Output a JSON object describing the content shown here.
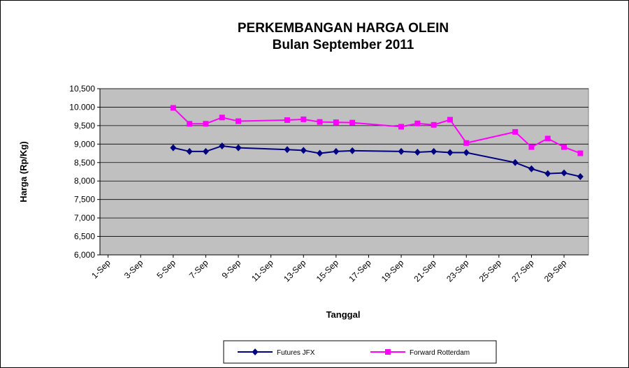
{
  "chart_data": {
    "type": "line",
    "title": "PERKEMBANGAN HARGA OLEIN",
    "subtitle": "Bulan September 2011",
    "x_label": "Tanggal",
    "y_label": "Harga (Rp/Kg)",
    "x": [
      5,
      6,
      7,
      8,
      9,
      12,
      13,
      14,
      15,
      16,
      19,
      20,
      21,
      22,
      23,
      26,
      27,
      28,
      29,
      30
    ],
    "xlim": [
      0.5,
      30.5
    ],
    "xticks": [
      {
        "value": 1,
        "label": "1-Sep"
      },
      {
        "value": 3,
        "label": "3-Sep"
      },
      {
        "value": 5,
        "label": "5-Sep"
      },
      {
        "value": 7,
        "label": "7-Sep"
      },
      {
        "value": 9,
        "label": "9-Sep"
      },
      {
        "value": 11,
        "label": "11-Sep"
      },
      {
        "value": 13,
        "label": "13-Sep"
      },
      {
        "value": 15,
        "label": "15-Sep"
      },
      {
        "value": 17,
        "label": "17-Sep"
      },
      {
        "value": 19,
        "label": "19-Sep"
      },
      {
        "value": 21,
        "label": "21-Sep"
      },
      {
        "value": 23,
        "label": "23-Sep"
      },
      {
        "value": 25,
        "label": "25-Sep"
      },
      {
        "value": 27,
        "label": "27-Sep"
      },
      {
        "value": 29,
        "label": "29-Sep"
      }
    ],
    "ylim": [
      6000,
      10500
    ],
    "yticks": [
      {
        "value": 6000,
        "label": "6,000"
      },
      {
        "value": 6500,
        "label": "6,500"
      },
      {
        "value": 7000,
        "label": "7,000"
      },
      {
        "value": 7500,
        "label": "7,500"
      },
      {
        "value": 8000,
        "label": "8,000"
      },
      {
        "value": 8500,
        "label": "8,500"
      },
      {
        "value": 9000,
        "label": "9,000"
      },
      {
        "value": 9500,
        "label": "9,500"
      },
      {
        "value": 10000,
        "label": "10.000"
      },
      {
        "value": 10500,
        "label": "10,500"
      }
    ],
    "grid": true,
    "legend": "bottom",
    "series": [
      {
        "name": "Futures JFX",
        "color": "#000080",
        "marker": "diamond",
        "values": [
          8900,
          8800,
          8800,
          8950,
          8900,
          8850,
          8830,
          8750,
          8800,
          8820,
          8800,
          8780,
          8800,
          8770,
          8770,
          8500,
          8330,
          8200,
          8220,
          8120
        ]
      },
      {
        "name": "Forward Rotterdam",
        "color": "#ff00ff",
        "marker": "square",
        "values": [
          9980,
          9550,
          9550,
          9720,
          9620,
          9650,
          9670,
          9600,
          9590,
          9580,
          9470,
          9560,
          9520,
          9660,
          9030,
          9330,
          8920,
          9150,
          8920,
          8750
        ]
      }
    ]
  }
}
